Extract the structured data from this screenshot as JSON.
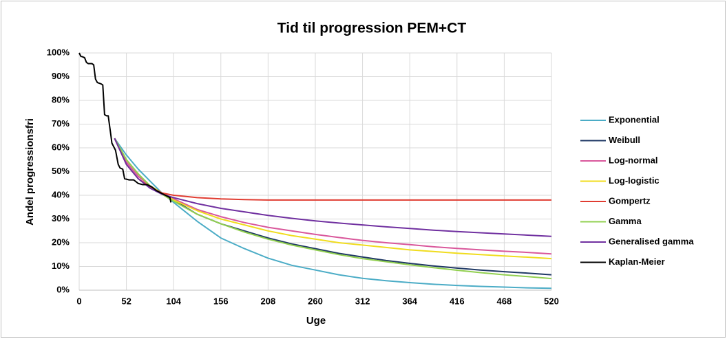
{
  "chart_data": {
    "type": "line",
    "title": "Tid til progression PEM+CT",
    "x_label": "Uge",
    "y_label": "Andel progressionsfri",
    "x": [
      0,
      13,
      26,
      39,
      52,
      65,
      78,
      91,
      104,
      130,
      156,
      182,
      208,
      234,
      260,
      286,
      312,
      338,
      364,
      390,
      416,
      442,
      468,
      494,
      520
    ],
    "xlim": [
      0,
      520
    ],
    "xticks": [
      0,
      52,
      104,
      156,
      208,
      260,
      312,
      364,
      416,
      468,
      520
    ],
    "ylim": [
      0,
      100
    ],
    "yticks": [
      {
        "value": 0,
        "label": "0%"
      },
      {
        "value": 10,
        "label": "10%"
      },
      {
        "value": 20,
        "label": "20%"
      },
      {
        "value": 30,
        "label": "30%"
      },
      {
        "value": 40,
        "label": "40%"
      },
      {
        "value": 50,
        "label": "50%"
      },
      {
        "value": 60,
        "label": "60%"
      },
      {
        "value": 70,
        "label": "70%"
      },
      {
        "value": 80,
        "label": "80%"
      },
      {
        "value": 90,
        "label": "90%"
      },
      {
        "value": 100,
        "label": "100%"
      }
    ],
    "grid": true,
    "legend": "right",
    "series": [
      {
        "name": "Exponential",
        "color": "#4bacc6",
        "values": [
          null,
          null,
          null,
          64,
          57,
          51,
          46,
          41,
          37,
          29,
          22,
          17.5,
          13.5,
          10.5,
          8.5,
          6.5,
          5,
          4,
          3.2,
          2.5,
          2,
          1.6,
          1.3,
          1,
          0.8
        ]
      },
      {
        "name": "Weibull",
        "color": "#1f3864",
        "values": [
          null,
          null,
          null,
          64,
          55,
          49,
          44,
          41,
          38,
          32,
          28,
          25,
          22,
          19.5,
          17.5,
          15.5,
          14,
          12.5,
          11.3,
          10.2,
          9.3,
          8.5,
          7.8,
          7.2,
          6.5
        ]
      },
      {
        "name": "Log-normal",
        "color": "#d9579b",
        "values": [
          null,
          null,
          null,
          64,
          54,
          48,
          44,
          41,
          38.5,
          34,
          31,
          28.5,
          26.5,
          25,
          23.5,
          22.2,
          21,
          20,
          19.2,
          18.3,
          17.6,
          17,
          16.4,
          15.9,
          15.3
        ]
      },
      {
        "name": "Log-logistic",
        "color": "#f0dc1e",
        "values": [
          null,
          null,
          null,
          64,
          55,
          49,
          44,
          41,
          38,
          33.5,
          30,
          27.5,
          25,
          23,
          21.5,
          20,
          19,
          18,
          17,
          16.3,
          15.6,
          15,
          14.4,
          13.9,
          13.3
        ]
      },
      {
        "name": "Gompertz",
        "color": "#e03c31",
        "values": [
          null,
          null,
          null,
          64,
          53,
          47,
          43.5,
          41,
          40,
          39,
          38.5,
          38.2,
          38,
          38,
          38,
          38,
          38,
          38,
          38,
          38,
          38,
          38,
          38,
          38,
          38
        ]
      },
      {
        "name": "Gamma",
        "color": "#92d050",
        "values": [
          null,
          null,
          null,
          64,
          55,
          49,
          44,
          40.5,
          37.5,
          32,
          28,
          24.5,
          21.5,
          19,
          17,
          15,
          13.3,
          12,
          10.7,
          9.5,
          8.4,
          7.4,
          6.5,
          5.7,
          4.9
        ]
      },
      {
        "name": "Generalised gamma",
        "color": "#7030a0",
        "values": [
          null,
          null,
          null,
          64,
          53,
          47,
          43,
          40.5,
          39,
          36.5,
          34.5,
          33,
          31.5,
          30.3,
          29.2,
          28.3,
          27.5,
          26.7,
          26,
          25.3,
          24.7,
          24.2,
          23.7,
          23.2,
          22.7
        ]
      },
      {
        "name": "Kaplan-Meier",
        "color": "#000000",
        "x": [
          0,
          2,
          3,
          6,
          7,
          8,
          10,
          14,
          16,
          18,
          20,
          24,
          26,
          28,
          30,
          32,
          35,
          36,
          40,
          43,
          45,
          48,
          50,
          55,
          60,
          65,
          70,
          75,
          80,
          85,
          90,
          95,
          100,
          101
        ],
        "values": [
          100,
          98.5,
          98.5,
          98,
          97,
          96,
          95.5,
          95.5,
          95,
          89,
          87.5,
          87,
          86.5,
          74,
          73.5,
          73.5,
          65,
          62,
          59,
          53,
          51.5,
          51,
          47,
          46.5,
          46.5,
          45,
          44.5,
          44.5,
          43.5,
          42,
          41,
          40,
          39,
          37
        ]
      }
    ]
  }
}
